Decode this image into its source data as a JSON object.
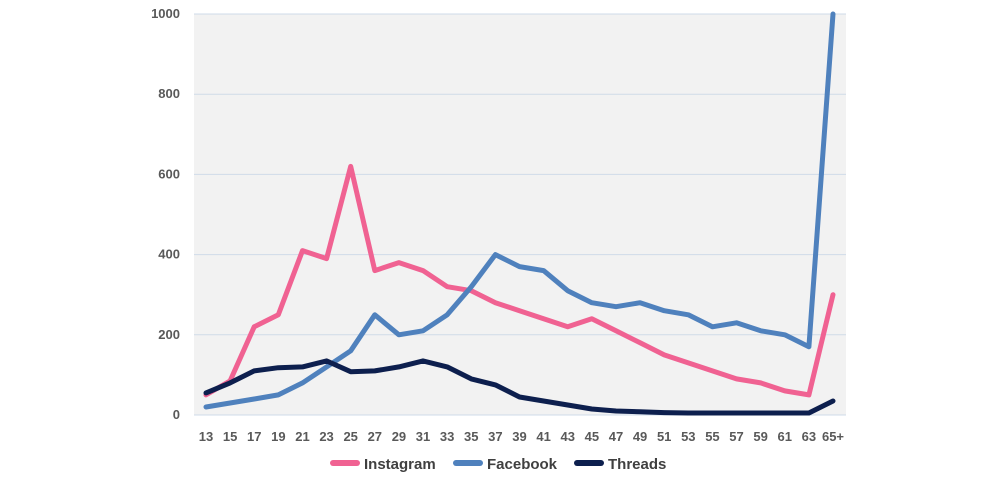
{
  "chart_data": {
    "type": "line",
    "categories": [
      "13",
      "15",
      "17",
      "19",
      "21",
      "23",
      "25",
      "27",
      "29",
      "31",
      "33",
      "35",
      "37",
      "39",
      "41",
      "43",
      "45",
      "47",
      "49",
      "51",
      "53",
      "55",
      "57",
      "59",
      "61",
      "63",
      "65+"
    ],
    "ylim": [
      0,
      1000
    ],
    "yticks": [
      0,
      200,
      400,
      600,
      800,
      1000
    ],
    "grid": true,
    "legend": "bottom",
    "series": [
      {
        "name": "Instagram",
        "color": "#F06292",
        "values": [
          50,
          85,
          220,
          250,
          410,
          390,
          620,
          360,
          380,
          360,
          320,
          310,
          280,
          260,
          240,
          220,
          240,
          210,
          180,
          150,
          130,
          110,
          90,
          80,
          60,
          50,
          300
        ]
      },
      {
        "name": "Facebook",
        "color": "#4F81BD",
        "values": [
          20,
          30,
          40,
          50,
          80,
          120,
          160,
          250,
          200,
          210,
          250,
          320,
          400,
          370,
          360,
          310,
          280,
          270,
          280,
          260,
          250,
          220,
          230,
          210,
          200,
          170,
          1000
        ]
      },
      {
        "name": "Threads",
        "color": "#0D1F4E",
        "values": [
          55,
          80,
          110,
          118,
          120,
          135,
          108,
          110,
          120,
          135,
          120,
          90,
          75,
          45,
          35,
          25,
          15,
          10,
          8,
          6,
          5,
          5,
          5,
          5,
          5,
          5,
          35
        ]
      }
    ]
  }
}
